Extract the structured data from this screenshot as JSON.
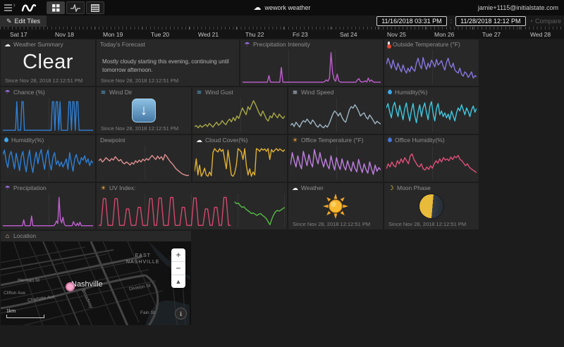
{
  "topbar": {
    "title": "wework weather",
    "user_email": "jamie+1115@initialstate.com"
  },
  "toolbar": {
    "edit_tiles_label": "Edit Tiles",
    "date_start": "11/16/2018 03:31 PM",
    "date_separator": ":",
    "date_end": "11/28/2018 12:12 PM",
    "compare_label": "Compare"
  },
  "timeline": {
    "dates": [
      "Sat 17",
      "Nov 18",
      "Mon 19",
      "Tue 20",
      "Wed 21",
      "Thu 22",
      "Fri 23",
      "Sat 24",
      "Nov 25",
      "Mon 26",
      "Tue 27",
      "Wed 28"
    ]
  },
  "common": {
    "since": "Since Nov 28, 2018 12:12:51 PM"
  },
  "tiles": {
    "weather_summary": {
      "label": "Weather Summary",
      "value": "Clear"
    },
    "forecast": {
      "label": "Today's Forecast",
      "text": "Mostly cloudy starting this evening, continuing until tomorrow afternoon."
    },
    "precip_intensity": {
      "label": "Precipitation Intensity"
    },
    "outside_temp": {
      "label": "Outside Temperature (°F)"
    },
    "chance": {
      "label": "Chance (%)"
    },
    "wind_dir": {
      "label": "Wind Dir",
      "arrow": "↓"
    },
    "wind_gust": {
      "label": "Wind Gust"
    },
    "wind_speed": {
      "label": "Wind Speed"
    },
    "humidity_a": {
      "label": "Humidity(%)"
    },
    "humidity_b": {
      "label": "Humidity(%)"
    },
    "dewpoint": {
      "label": "Dewpoint"
    },
    "cloud_cover": {
      "label": "Cloud Cover(%)"
    },
    "office_temp": {
      "label": "Office Temperature (°F)"
    },
    "office_humidity": {
      "label": "Office Humidity(%)"
    },
    "precipitation": {
      "label": "Precipitation"
    },
    "uv_index": {
      "label": "UV Index:"
    },
    "weather": {
      "label": "Weather"
    },
    "moon_phase": {
      "label": "Moon Phase"
    },
    "location": {
      "label": "Location"
    }
  },
  "chart_data": {
    "precip_intensity": {
      "type": "line",
      "series": [
        {
          "color": "#c05fd0",
          "range": [
            0,
            100
          ],
          "points": [
            1,
            1,
            1,
            1,
            1,
            1,
            1,
            1,
            1,
            1,
            1,
            1,
            1,
            1,
            1,
            1,
            1,
            22,
            1,
            1,
            1,
            1,
            1,
            1,
            1,
            48,
            1,
            1,
            1,
            1,
            1,
            1,
            1,
            1,
            1,
            1,
            1,
            1,
            1,
            1,
            1,
            1,
            1,
            1,
            1,
            1,
            1,
            1,
            1,
            1,
            1,
            1,
            1,
            3,
            8,
            4,
            14,
            96,
            32,
            9,
            4,
            27,
            5,
            1,
            1,
            1,
            1,
            1,
            1,
            1,
            1,
            1,
            1,
            1,
            8,
            12,
            3,
            1,
            2,
            5,
            1,
            14,
            3,
            8,
            2,
            1,
            1,
            1,
            1,
            1
          ]
        }
      ]
    },
    "outside_temp": {
      "type": "line",
      "series": [
        {
          "color": "#8777e0",
          "range": [
            0,
            100
          ],
          "points": [
            58,
            78,
            62,
            45,
            72,
            52,
            40,
            62,
            46,
            34,
            56,
            40,
            30,
            46,
            34,
            52,
            42,
            36,
            62,
            78,
            56,
            44,
            80,
            58,
            42,
            62,
            48,
            72,
            62,
            50,
            74,
            56,
            62,
            70,
            52,
            40,
            64,
            78,
            56,
            48,
            62,
            40,
            34,
            30,
            46,
            26,
            20,
            34,
            28,
            16,
            24,
            34,
            14,
            22,
            18
          ]
        }
      ]
    },
    "chance": {
      "type": "bar",
      "series": [
        {
          "color": "#2f7fd4",
          "range": [
            0,
            100
          ],
          "points": [
            0,
            0,
            0,
            0,
            0,
            0,
            0,
            0,
            0,
            0,
            0,
            92,
            0,
            0,
            0,
            92,
            92,
            0,
            0,
            0,
            0,
            0,
            0,
            0,
            0,
            0,
            0,
            0,
            0,
            0,
            0,
            0,
            0,
            0,
            0,
            0,
            0,
            0,
            0,
            92,
            92,
            0,
            92,
            92,
            0,
            92,
            0,
            0,
            0,
            0,
            0,
            0,
            92,
            92,
            0,
            92,
            92,
            0,
            92,
            92,
            0,
            0,
            0,
            0,
            0,
            0,
            0,
            0,
            0,
            0,
            0,
            0
          ]
        }
      ]
    },
    "wind_gust": {
      "type": "line",
      "series": [
        {
          "color": "#a8a848",
          "range": [
            0,
            100
          ],
          "points": [
            12,
            15,
            8,
            16,
            10,
            14,
            19,
            12,
            22,
            16,
            10,
            19,
            26,
            16,
            21,
            31,
            23,
            18,
            29,
            36,
            27,
            41,
            31,
            46,
            38,
            56,
            72,
            60,
            50,
            76,
            66,
            82,
            95,
            84,
            70,
            56,
            46,
            62,
            50,
            36,
            30,
            46,
            40,
            56,
            48,
            40,
            52,
            44,
            38,
            46
          ]
        }
      ]
    },
    "wind_speed": {
      "type": "line",
      "series": [
        {
          "color": "#9fb6c4",
          "range": [
            0,
            100
          ],
          "points": [
            16,
            22,
            12,
            26,
            18,
            10,
            23,
            31,
            26,
            36,
            28,
            20,
            33,
            26,
            15,
            10,
            19,
            12,
            8,
            16,
            10,
            21,
            36,
            52,
            62,
            56,
            46,
            56,
            41,
            31,
            26,
            46,
            66,
            76,
            71,
            82,
            73,
            61,
            46,
            52,
            56,
            43,
            36,
            49,
            41,
            31,
            21,
            29,
            24,
            20
          ]
        }
      ]
    },
    "humidity_a": {
      "type": "line",
      "series": [
        {
          "color": "#3fc8e0",
          "range": [
            0,
            100
          ],
          "points": [
            72,
            86,
            60,
            40,
            76,
            90,
            64,
            44,
            80,
            58,
            34,
            70,
            88,
            54,
            30,
            64,
            86,
            48,
            24,
            60,
            82,
            44,
            72,
            88,
            58,
            34,
            76,
            92,
            54,
            30,
            70,
            86,
            50,
            62,
            44,
            56,
            40,
            52,
            34,
            62,
            46,
            30,
            56,
            72,
            62,
            82,
            66,
            50,
            72,
            60,
            44,
            66,
            78,
            58,
            70
          ]
        }
      ]
    },
    "humidity_b": {
      "type": "line",
      "series": [
        {
          "color": "#2f7fd4",
          "range": [
            0,
            100
          ],
          "points": [
            76,
            90,
            54,
            34,
            72,
            86,
            58,
            30,
            80,
            54,
            24,
            68,
            86,
            48,
            20,
            62,
            90,
            44,
            18,
            58,
            84,
            46,
            76,
            92,
            56,
            28,
            72,
            90,
            48,
            26,
            68,
            82,
            44,
            56,
            38,
            52,
            36,
            48,
            62,
            28,
            82,
            50,
            22,
            62,
            76,
            54,
            44,
            66,
            58,
            72,
            50,
            62,
            40,
            56,
            48
          ]
        }
      ]
    },
    "dewpoint": {
      "type": "line",
      "series": [
        {
          "color": "#e09090",
          "range": [
            0,
            100
          ],
          "points": [
            56,
            62,
            52,
            58,
            66,
            60,
            55,
            63,
            58,
            69,
            62,
            55,
            60,
            50,
            46,
            52,
            48,
            42,
            50,
            45,
            56,
            50,
            58,
            52,
            61,
            56,
            63,
            58,
            66,
            73,
            66,
            60,
            71,
            62,
            69,
            58,
            76,
            69,
            60,
            52,
            46,
            38,
            30,
            25,
            20,
            15,
            12,
            10,
            8,
            10
          ]
        }
      ]
    },
    "cloud_cover": {
      "type": "line",
      "series": [
        {
          "color": "#e0b22f",
          "range": [
            0,
            100
          ],
          "points": [
            22,
            62,
            10,
            42,
            6,
            16,
            32,
            10,
            6,
            20,
            8,
            82,
            95,
            88,
            84,
            95,
            86,
            92,
            60,
            30,
            90,
            52,
            10,
            6,
            16,
            42,
            95,
            90,
            84,
            60,
            95,
            40,
            10,
            30,
            6,
            20,
            10,
            95,
            92,
            86,
            95,
            90,
            94,
            86,
            95,
            60,
            92,
            84,
            90,
            95,
            88,
            94,
            90,
            86,
            92
          ]
        }
      ]
    },
    "office_temp": {
      "type": "line",
      "series": [
        {
          "color": "#c07fe0",
          "range": [
            0,
            100
          ],
          "points": [
            42,
            82,
            56,
            36,
            72,
            46,
            30,
            86,
            62,
            40,
            76,
            50,
            36,
            92,
            66,
            46,
            82,
            56,
            36,
            62,
            42,
            30,
            72,
            46,
            26,
            66,
            42,
            28,
            62,
            38,
            26,
            56,
            36,
            22,
            52,
            32,
            20,
            60,
            36,
            18,
            46,
            28,
            16,
            52,
            30,
            12,
            42,
            22,
            34,
            26
          ]
        }
      ]
    },
    "office_humidity": {
      "type": "line",
      "series": [
        {
          "color": "#e0507a",
          "range": [
            0,
            100
          ],
          "points": [
            30,
            46,
            36,
            52,
            40,
            36,
            56,
            46,
            62,
            50,
            66,
            56,
            46,
            72,
            78,
            60,
            50,
            40,
            36,
            46,
            30,
            26,
            36,
            28,
            40,
            32,
            46,
            56,
            48,
            62,
            52,
            66,
            58,
            62,
            56,
            68,
            60,
            70,
            66,
            73,
            60,
            56,
            48,
            40,
            46,
            36,
            30,
            26,
            22,
            18
          ]
        }
      ]
    },
    "precipitation": {
      "type": "line",
      "series": [
        {
          "color": "#c05fd0",
          "range": [
            0,
            100
          ],
          "points": [
            1,
            1,
            1,
            1,
            1,
            1,
            1,
            1,
            1,
            1,
            1,
            1,
            1,
            1,
            1,
            1,
            20,
            1,
            1,
            1,
            1,
            1,
            32,
            1,
            1,
            1,
            1,
            1,
            1,
            1,
            1,
            1,
            1,
            1,
            1,
            1,
            1,
            1,
            1,
            1,
            6,
            16,
            8,
            92,
            22,
            10,
            28,
            6,
            1,
            1,
            1,
            1,
            1,
            1,
            14,
            5,
            1,
            9,
            1,
            12,
            1,
            1,
            1,
            1,
            1,
            1,
            1,
            1,
            1,
            1
          ]
        }
      ]
    },
    "uv_index": {
      "type": "line",
      "series": [
        {
          "color": "#d5486e",
          "range": [
            0,
            71
          ],
          "points": [
            2,
            2,
            88,
            88,
            2,
            2,
            2,
            88,
            88,
            2,
            2,
            2,
            55,
            55,
            2,
            2,
            2,
            60,
            60,
            2,
            2,
            2,
            88,
            88,
            2,
            2,
            90,
            90,
            2,
            2,
            2,
            92,
            92,
            2,
            2,
            2,
            60,
            60,
            2,
            2,
            2,
            90,
            90,
            2,
            2,
            2,
            55,
            55,
            2,
            2,
            60,
            60,
            2,
            2,
            92,
            92,
            2,
            2
          ]
        },
        {
          "color": "#55bb44",
          "range": [
            73,
            100
          ],
          "points": [
            78,
            72,
            74,
            66,
            60,
            62,
            55,
            50,
            46,
            40,
            42,
            38,
            34,
            38,
            40,
            34,
            30,
            24,
            14,
            4,
            22,
            36,
            46,
            50,
            48,
            52,
            56,
            60
          ]
        }
      ]
    }
  },
  "map": {
    "city": "Nashville",
    "area_line1": "EAST",
    "area_line2": "NASHVILLE",
    "streets": [
      "Herman St",
      "Clifton Ave",
      "Charlotte Ave",
      "Broadway",
      "Division St",
      "Fain St"
    ],
    "scale_label": "1km",
    "zoom_in": "+",
    "zoom_out": "−",
    "compass": "▲",
    "attribution": "i"
  }
}
